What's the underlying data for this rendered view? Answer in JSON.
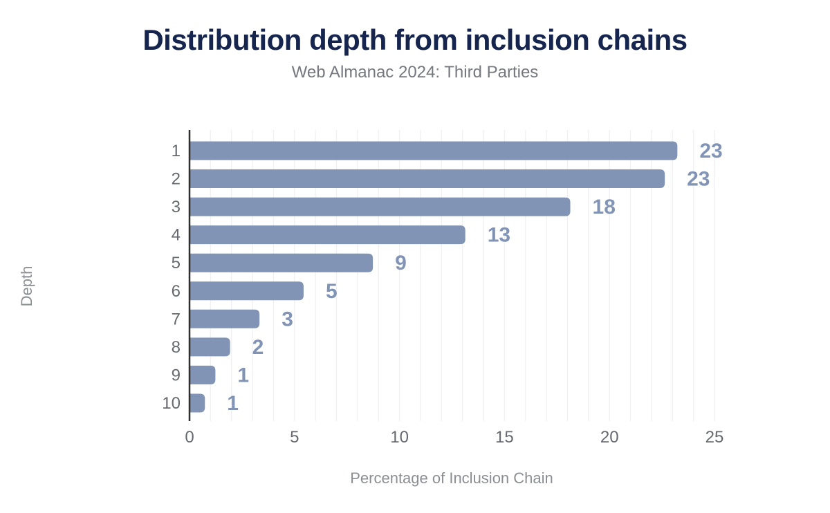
{
  "header": {
    "title": "Distribution depth from inclusion chains",
    "subtitle": "Web Almanac 2024: Third Parties",
    "title_color": "#15254d",
    "subtitle_color": "#75787e"
  },
  "chart_data": {
    "type": "bar",
    "orientation": "horizontal",
    "title": "Distribution depth from inclusion chains",
    "subtitle": "Web Almanac 2024: Third Parties",
    "categories": [
      "1",
      "2",
      "3",
      "4",
      "5",
      "6",
      "7",
      "8",
      "9",
      "10"
    ],
    "values": [
      23.2,
      22.6,
      18.1,
      13.1,
      8.7,
      5.4,
      3.3,
      1.9,
      1.2,
      0.7
    ],
    "data_labels": [
      "23",
      "23",
      "18",
      "13",
      "9",
      "5",
      "3",
      "2",
      "1",
      "1"
    ],
    "xlabel": "Percentage of Inclusion Chain",
    "ylabel": "Depth",
    "xlim": [
      0,
      25
    ],
    "x_ticks": [
      0,
      5,
      10,
      15,
      20,
      25
    ],
    "grid": "vertical gridlines every 1 unit",
    "legend": "none",
    "bar_color": "#8294b5",
    "label_color": "#8294b5",
    "grid_color": "#f1f1f4",
    "axis_line_color": "#2f2f2f",
    "tick_label_color": "#66696f",
    "axis_title_color": "#8b8e93"
  }
}
